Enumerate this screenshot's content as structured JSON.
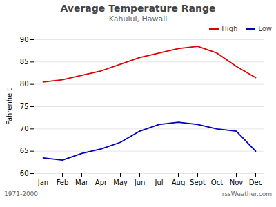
{
  "chart_data": {
    "type": "line",
    "title": "Average Temperature Range",
    "subtitle": "Kahului, Hawaii",
    "ylabel": "Fahrenheit",
    "annotations": [
      "1971-2000",
      "rssWeather.com"
    ],
    "categories": [
      "Jan",
      "Feb",
      "Mar",
      "Apr",
      "May",
      "Jun",
      "Jul",
      "Aug",
      "Sept",
      "Oct",
      "Nov",
      "Dec"
    ],
    "series": [
      {
        "name": "High",
        "color": "#DD0000",
        "values": [
          80.5,
          81.0,
          82.0,
          83.0,
          84.5,
          86.0,
          87.0,
          88.0,
          88.5,
          87.0,
          84.0,
          81.5
        ]
      },
      {
        "name": "Low",
        "color": "#0000BB",
        "values": [
          63.5,
          63.0,
          64.5,
          65.5,
          67.0,
          69.5,
          71.0,
          71.5,
          71.0,
          70.0,
          69.5,
          65.0
        ]
      }
    ],
    "ylim": [
      60,
      90
    ],
    "yticks": [
      60,
      65,
      70,
      75,
      80,
      85,
      90
    ],
    "grid": true,
    "legend": "upper right"
  }
}
